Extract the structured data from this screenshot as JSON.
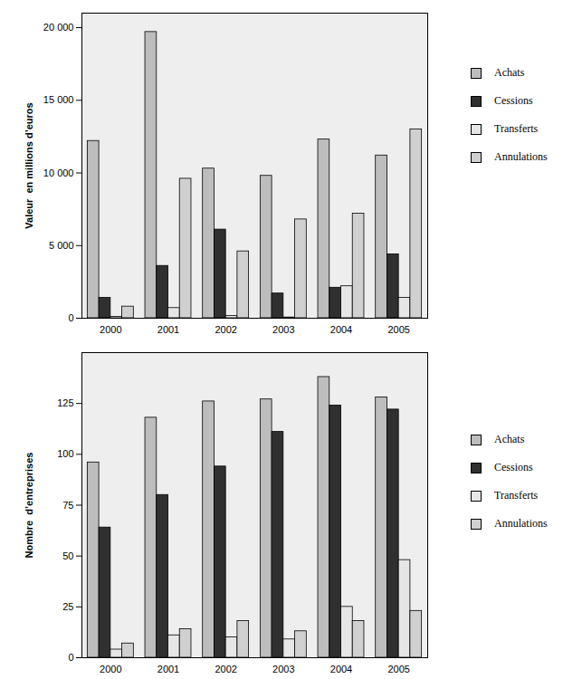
{
  "chart_data": [
    {
      "type": "bar",
      "y_label": "Valeur  en millions d’euros",
      "categories": [
        "2000",
        "2001",
        "2002",
        "2003",
        "2004",
        "2005"
      ],
      "series": [
        {
          "name": "Achats",
          "color": "#bdbdbd",
          "values": [
            12200,
            19700,
            10300,
            9800,
            12300,
            11200
          ]
        },
        {
          "name": "Cessions",
          "color": "#303030",
          "values": [
            1400,
            3600,
            6100,
            1700,
            2100,
            4400
          ]
        },
        {
          "name": "Transferts",
          "color": "#e6e6e6",
          "values": [
            100,
            700,
            150,
            50,
            2200,
            1400
          ]
        },
        {
          "name": "Annulations",
          "color": "#d0d0d0",
          "values": [
            800,
            9600,
            4600,
            6800,
            7200,
            13000
          ]
        }
      ],
      "ylim": [
        0,
        21000
      ],
      "yticks": [
        0,
        {
          "value": 5000,
          "label": "5 000"
        },
        {
          "value": 10000,
          "label": "10 000"
        },
        {
          "value": 15000,
          "label": "15 000"
        },
        {
          "value": 20000,
          "label": "20 000"
        }
      ],
      "grid": false,
      "legend": "right"
    },
    {
      "type": "bar",
      "y_label": "Nombre  d’entreprises",
      "categories": [
        "2000",
        "2001",
        "2002",
        "2003",
        "2004",
        "2005"
      ],
      "series": [
        {
          "name": "Achats",
          "color": "#bdbdbd",
          "values": [
            96,
            118,
            126,
            127,
            138,
            128
          ]
        },
        {
          "name": "Cessions",
          "color": "#303030",
          "values": [
            64,
            80,
            94,
            111,
            124,
            122
          ]
        },
        {
          "name": "Transferts",
          "color": "#e6e6e6",
          "values": [
            4,
            11,
            10,
            9,
            25,
            48
          ]
        },
        {
          "name": "Annulations",
          "color": "#d0d0d0",
          "values": [
            7,
            14,
            18,
            13,
            18,
            23
          ]
        }
      ],
      "ylim": [
        0,
        150
      ],
      "yticks": [
        0,
        25,
        50,
        75,
        100,
        125
      ],
      "grid": false,
      "legend": "right"
    }
  ]
}
